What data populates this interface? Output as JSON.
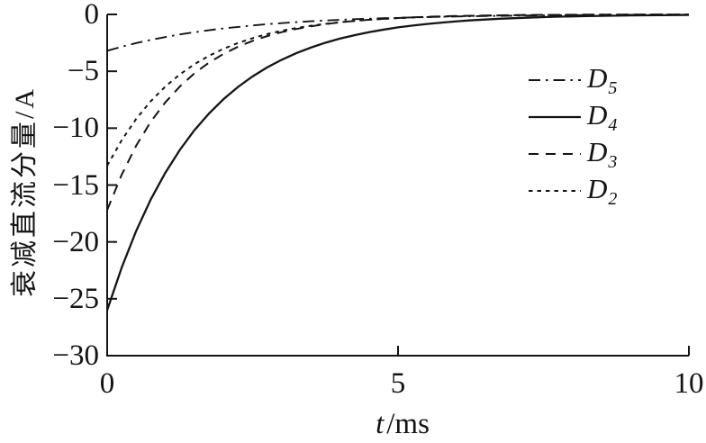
{
  "figure": {
    "background": "#ffffff",
    "ink_color": "#141414"
  },
  "chart_data": {
    "type": "line",
    "title": "",
    "ylabel": "衰减直流分量/A",
    "xlabel": {
      "var": "t",
      "unit": "/ms"
    },
    "xlim": [
      0,
      10
    ],
    "ylim": [
      -30,
      0
    ],
    "grid": false,
    "legend_position": "upper-right-inside",
    "xticks": [
      {
        "v": 0,
        "label": "0"
      },
      {
        "v": 5,
        "label": "5"
      },
      {
        "v": 10,
        "label": "10"
      }
    ],
    "yticks": [
      {
        "v": 0,
        "label": "0"
      },
      {
        "v": -5,
        "label": "−5"
      },
      {
        "v": -10,
        "label": "−10"
      },
      {
        "v": -15,
        "label": "−15"
      },
      {
        "v": -20,
        "label": "−20"
      },
      {
        "v": -25,
        "label": "−25"
      },
      {
        "v": -30,
        "label": "−30"
      }
    ],
    "t": {
      "start": 0,
      "end": 10,
      "step": 0.25
    },
    "series": [
      {
        "name": "D5",
        "label_base": "D",
        "label_sub": "5",
        "style": "dashdot",
        "dash": "13 6 2.5 6",
        "width": 1.9,
        "y0": -3.2,
        "tau_ms": 2.1,
        "values": [
          -3.2,
          -2.84,
          -2.52,
          -2.24,
          -1.99,
          -1.76,
          -1.57,
          -1.39,
          -1.23,
          -1.1,
          -0.97,
          -0.86,
          -0.77,
          -0.68,
          -0.6,
          -0.54,
          -0.48,
          -0.42,
          -0.38,
          -0.33,
          -0.3,
          -0.26,
          -0.23,
          -0.21,
          -0.18,
          -0.16,
          -0.14,
          -0.13,
          -0.11,
          -0.1,
          -0.09,
          -0.08,
          -0.07,
          -0.06,
          -0.06,
          -0.05,
          -0.04,
          -0.04,
          -0.03,
          -0.03,
          -0.03
        ]
      },
      {
        "name": "D4",
        "label_base": "D",
        "label_sub": "4",
        "style": "solid",
        "dash": "",
        "width": 2.3,
        "y0": -26,
        "tau_ms": 1.6,
        "values": [
          -26,
          -22.24,
          -19.02,
          -16.27,
          -13.92,
          -11.9,
          -10.18,
          -8.71,
          -7.45,
          -6.37,
          -5.45,
          -4.66,
          -3.99,
          -3.41,
          -2.92,
          -2.49,
          -2.13,
          -1.83,
          -1.56,
          -1.34,
          -1.14,
          -0.98,
          -0.84,
          -0.72,
          -0.61,
          -0.52,
          -0.45,
          -0.38,
          -0.33,
          -0.28,
          -0.24,
          -0.2,
          -0.18,
          -0.15,
          -0.13,
          -0.11,
          -0.09,
          -0.08,
          -0.07,
          -0.06,
          -0.05
        ]
      },
      {
        "name": "D3",
        "label_base": "D",
        "label_sub": "3",
        "style": "dashed",
        "dash": "11 8",
        "width": 2,
        "y0": -17.2,
        "tau_ms": 1.25,
        "values": [
          -17.2,
          -14.08,
          -11.53,
          -9.44,
          -7.73,
          -6.33,
          -5.18,
          -4.24,
          -3.47,
          -2.84,
          -2.33,
          -1.91,
          -1.56,
          -1.28,
          -1.05,
          -0.86,
          -0.7,
          -0.57,
          -0.47,
          -0.39,
          -0.32,
          -0.26,
          -0.21,
          -0.17,
          -0.14,
          -0.12,
          -0.1,
          -0.08,
          -0.06,
          -0.05,
          -0.04,
          -0.04,
          -0.03,
          -0.02,
          -0.02,
          -0.02,
          -0.01,
          -0.01,
          -0.01,
          -0.01,
          -0.01
        ]
      },
      {
        "name": "D2",
        "label_base": "D",
        "label_sub": "2",
        "style": "dotted",
        "dash": "4.5 5",
        "width": 2,
        "y0": -13.3,
        "tau_ms": 1.35,
        "values": [
          -13.3,
          -11.05,
          -9.18,
          -7.63,
          -6.34,
          -5.27,
          -4.38,
          -3.64,
          -3.02,
          -2.51,
          -2.09,
          -1.73,
          -1.44,
          -1.2,
          -1.0,
          -0.83,
          -0.69,
          -0.57,
          -0.47,
          -0.39,
          -0.33,
          -0.27,
          -0.23,
          -0.19,
          -0.16,
          -0.13,
          -0.11,
          -0.09,
          -0.07,
          -0.06,
          -0.05,
          -0.04,
          -0.04,
          -0.03,
          -0.02,
          -0.02,
          -0.02,
          -0.01,
          -0.01,
          -0.01,
          -0.01
        ]
      }
    ]
  }
}
